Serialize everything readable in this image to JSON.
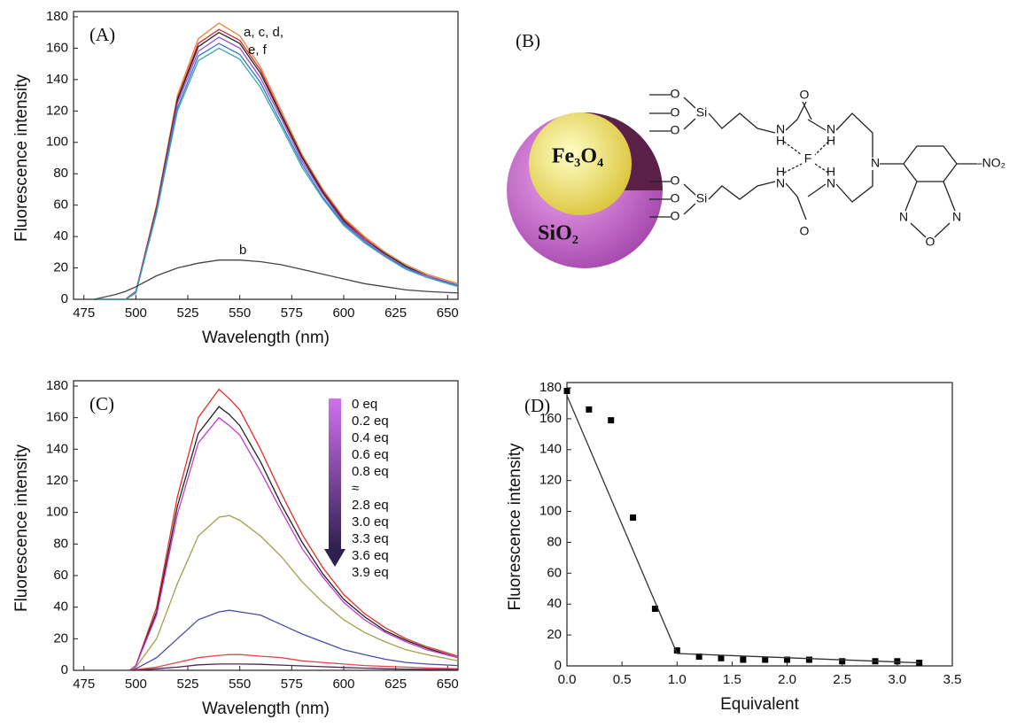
{
  "chart_data": [
    {
      "type": "line",
      "panel_label": "(A)",
      "xlabel": "Wavelength (nm)",
      "ylabel": "Fluorescence intensity",
      "xlim": [
        470,
        655
      ],
      "xticks": [
        475,
        500,
        525,
        550,
        575,
        600,
        625,
        650
      ],
      "ylim": [
        0,
        180
      ],
      "yticks": [
        0,
        20,
        40,
        60,
        80,
        100,
        120,
        140,
        160,
        180
      ],
      "x": [
        480,
        490,
        495,
        500,
        510,
        520,
        530,
        540,
        550,
        560,
        570,
        580,
        590,
        600,
        610,
        620,
        630,
        640,
        655
      ],
      "series": [
        {
          "color": "#e8833a",
          "values": [
            0,
            0,
            0,
            5,
            60,
            130,
            166,
            176,
            168,
            148,
            120,
            92,
            70,
            52,
            40,
            30,
            22,
            16,
            10
          ]
        },
        {
          "color": "#d62728",
          "values": [
            0,
            0,
            0,
            5,
            59,
            128,
            163,
            172,
            165,
            146,
            118,
            91,
            69,
            51,
            39,
            29,
            21,
            15,
            9
          ]
        },
        {
          "color": "#222222",
          "values": [
            0,
            0,
            0,
            5,
            58,
            127,
            161,
            170,
            163,
            144,
            117,
            90,
            68,
            50,
            38,
            29,
            21,
            15,
            9
          ]
        },
        {
          "color": "#9b4fc9",
          "values": [
            0,
            0,
            0,
            5,
            57,
            125,
            158,
            167,
            160,
            141,
            115,
            88,
            67,
            49,
            38,
            28,
            20,
            15,
            9
          ]
        },
        {
          "color": "#3a6fd8",
          "values": [
            0,
            0,
            0,
            4,
            56,
            122,
            155,
            163,
            156,
            138,
            112,
            86,
            65,
            48,
            37,
            27,
            20,
            14,
            9
          ]
        },
        {
          "color": "#3aa8a8",
          "values": [
            0,
            0,
            0,
            4,
            55,
            120,
            152,
            160,
            153,
            135,
            110,
            84,
            64,
            47,
            36,
            27,
            19,
            14,
            8
          ]
        },
        {
          "color": "#444444",
          "values": [
            0,
            3,
            5,
            8,
            15,
            20,
            23,
            25,
            25,
            24,
            22,
            19,
            16,
            13,
            10,
            8,
            6,
            5,
            4
          ]
        }
      ],
      "annotations": [
        "a, c, d,",
        "e, f",
        "b"
      ]
    },
    {
      "type": "line",
      "panel_label": "(C)",
      "xlabel": "Wavelength (nm)",
      "ylabel": "Fluorescence intensity",
      "xlim": [
        470,
        655
      ],
      "xticks": [
        475,
        500,
        525,
        550,
        575,
        600,
        625,
        650
      ],
      "ylim": [
        0,
        180
      ],
      "yticks": [
        0,
        20,
        40,
        60,
        80,
        100,
        120,
        140,
        160,
        180
      ],
      "x": [
        497,
        500,
        510,
        520,
        530,
        540,
        545,
        550,
        560,
        570,
        580,
        590,
        600,
        610,
        620,
        630,
        640,
        655
      ],
      "series": [
        {
          "color": "#e0302a",
          "values": [
            0,
            3,
            40,
            110,
            160,
            178,
            172,
            165,
            140,
            112,
            86,
            65,
            48,
            36,
            27,
            20,
            15,
            9
          ]
        },
        {
          "color": "#222222",
          "values": [
            0,
            3,
            37,
            104,
            150,
            167,
            162,
            155,
            132,
            105,
            81,
            61,
            45,
            34,
            25,
            19,
            14,
            8
          ]
        },
        {
          "color": "#c03ad0",
          "values": [
            0,
            3,
            35,
            99,
            144,
            160,
            155,
            149,
            126,
            101,
            77,
            59,
            43,
            32,
            24,
            18,
            13,
            8
          ]
        },
        {
          "color": "#a3a04a",
          "values": [
            0,
            2,
            20,
            55,
            85,
            97,
            98,
            95,
            85,
            72,
            56,
            43,
            32,
            24,
            18,
            13,
            10,
            6
          ]
        },
        {
          "color": "#4a4aa8",
          "values": [
            0,
            1,
            8,
            20,
            32,
            37,
            38,
            37,
            35,
            29,
            23,
            18,
            13,
            10,
            7,
            5,
            4,
            3
          ]
        },
        {
          "color": "#e04848",
          "values": [
            0,
            0.5,
            2,
            5,
            8,
            9.5,
            10,
            10,
            9,
            8,
            6,
            5,
            4,
            3,
            2.5,
            2,
            1.5,
            1
          ]
        },
        {
          "color": "#552255",
          "values": [
            0,
            0,
            1,
            2,
            3.5,
            4,
            4,
            4,
            3.8,
            3.3,
            2.8,
            2.3,
            1.8,
            1.4,
            1,
            0.8,
            0.6,
            0.4
          ]
        }
      ],
      "labels": [
        "0 eq",
        "0.2 eq",
        "0.4 eq",
        "0.6 eq",
        "0.8 eq",
        "≈",
        "2.8 eq",
        "3.0 eq",
        "3.3 eq",
        "3.6 eq",
        "3.9 eq"
      ]
    },
    {
      "type": "scatter",
      "panel_label": "(D)",
      "xlabel": "Equivalent",
      "ylabel": "Fluorescence intensity",
      "xlim": [
        0,
        3.5
      ],
      "xticks": [
        {
          "value": 0,
          "label": "0.0"
        },
        0.5,
        {
          "value": 1,
          "label": "1.0"
        },
        1.5,
        {
          "value": 2,
          "label": "2.0"
        },
        2.5,
        {
          "value": 3,
          "label": "3.0"
        },
        3.5
      ],
      "ylim": [
        0,
        180
      ],
      "yticks": [
        0,
        20,
        40,
        60,
        80,
        100,
        120,
        140,
        160,
        180
      ],
      "series": [
        {
          "type": "scatter",
          "color": "#000000",
          "x": [
            0,
            0.2,
            0.4,
            0.6,
            0.8,
            1.0,
            1.2,
            1.4,
            1.6,
            1.8,
            2.0,
            2.2,
            2.5,
            2.8,
            3.0,
            3.2
          ],
          "values": [
            178,
            166,
            159,
            96,
            37,
            10,
            6,
            5,
            4,
            4,
            4,
            4,
            3,
            3,
            3,
            2
          ]
        },
        {
          "type": "line",
          "color": "#333333",
          "x": [
            0,
            1,
            3.2
          ],
          "values": [
            175,
            8,
            2
          ]
        }
      ]
    }
  ],
  "diagram": {
    "label": "(B)",
    "core": "Fe₃O₄",
    "shell": "SiO₂",
    "atoms": [
      "O",
      "O",
      "Si",
      "O",
      "N",
      "H",
      "O",
      "N",
      "H",
      "F",
      "H",
      "N",
      "H",
      "N",
      "N",
      "–NO₂",
      "O",
      "O",
      "Si",
      "O",
      "O",
      "N",
      "N",
      "O"
    ]
  }
}
